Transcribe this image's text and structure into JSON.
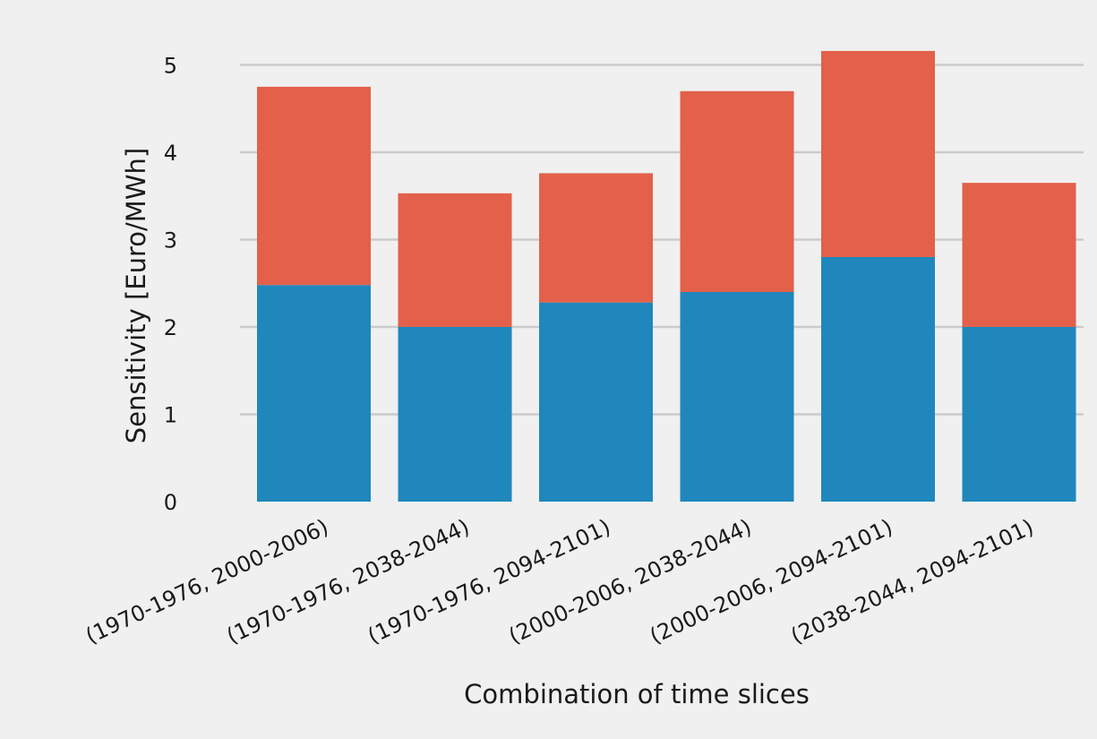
{
  "chart_data": {
    "type": "bar",
    "stacked": true,
    "title": "",
    "xlabel": "Combination of time slices",
    "ylabel": "Sensitivity [Euro/MWh]",
    "ylim": [
      0,
      5.25
    ],
    "yticks": [
      0,
      1,
      2,
      3,
      4,
      5
    ],
    "grid": "horizontal",
    "categories": [
      "(1970-1976, 2000-2006)",
      "(1970-1976, 2038-2044)",
      "(1970-1976, 2094-2101)",
      "(2000-2006, 2038-2044)",
      "(2000-2006, 2094-2101)",
      "(2038-2044, 2094-2101)"
    ],
    "series": [
      {
        "values": [
          2.48,
          2.0,
          2.28,
          2.4,
          2.8,
          2.0
        ],
        "color": "#1f87bc"
      },
      {
        "values": [
          2.27,
          1.53,
          1.48,
          2.3,
          2.36,
          1.65
        ],
        "color": "#e3604a"
      }
    ]
  }
}
